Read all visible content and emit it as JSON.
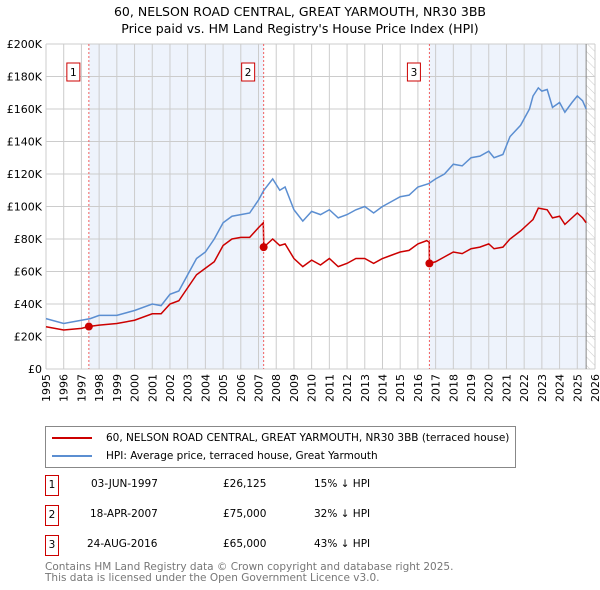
{
  "chart_data": {
    "type": "line",
    "title": "60, NELSON ROAD CENTRAL, GREAT YARMOUTH, NR30 3BB",
    "subtitle": "Price paid vs. HM Land Registry's House Price Index (HPI)",
    "xlim": [
      1995,
      2026
    ],
    "ylim": [
      0,
      200000
    ],
    "x_ticks": [
      "1995",
      "1996",
      "1997",
      "1998",
      "1999",
      "2000",
      "2001",
      "2002",
      "2003",
      "2004",
      "2005",
      "2006",
      "2007",
      "2008",
      "2009",
      "2010",
      "2011",
      "2012",
      "2013",
      "2014",
      "2015",
      "2016",
      "2017",
      "2018",
      "2019",
      "2020",
      "2021",
      "2022",
      "2023",
      "2024",
      "2025",
      "2026"
    ],
    "y_ticks": [
      {
        "v": 0,
        "label": "£0"
      },
      {
        "v": 20000,
        "label": "£20K"
      },
      {
        "v": 40000,
        "label": "£40K"
      },
      {
        "v": 60000,
        "label": "£60K"
      },
      {
        "v": 80000,
        "label": "£80K"
      },
      {
        "v": 100000,
        "label": "£100K"
      },
      {
        "v": 120000,
        "label": "£120K"
      },
      {
        "v": 140000,
        "label": "£140K"
      },
      {
        "v": 160000,
        "label": "£160K"
      },
      {
        "v": 180000,
        "label": "£180K"
      },
      {
        "v": 200000,
        "label": "£200K"
      }
    ],
    "grid": true,
    "colors": {
      "property": "#cc0000",
      "hpi": "#5b8ed1",
      "shade": "#eef3fc",
      "marker": "#cc0000"
    },
    "series": [
      {
        "name": "60, NELSON ROAD CENTRAL, GREAT YARMOUTH, NR30 3BB (terraced house)",
        "x": [
          1995,
          1996,
          1997,
          1997.42,
          1998,
          1999,
          2000,
          2001,
          2001.5,
          2002,
          2002.5,
          2003,
          2003.5,
          2004,
          2004.5,
          2005,
          2005.5,
          2006,
          2006.5,
          2007,
          2007.27,
          2007.3,
          2007.8,
          2008.2,
          2008.5,
          2009,
          2009.5,
          2010,
          2010.5,
          2011,
          2011.5,
          2012,
          2012.5,
          2013,
          2013.5,
          2014,
          2014.5,
          2015,
          2015.5,
          2016,
          2016.5,
          2016.64,
          2016.65,
          2017,
          2017.5,
          2018,
          2018.5,
          2019,
          2019.5,
          2020,
          2020.3,
          2020.8,
          2021.2,
          2021.8,
          2022.3,
          2022.5,
          2022.8,
          2023.3,
          2023.6,
          2024,
          2024.3,
          2024.7,
          2025,
          2025.3,
          2025.5
        ],
        "y": [
          26,
          24,
          25,
          26.125,
          27,
          28,
          30,
          34,
          34,
          40,
          42,
          50,
          58,
          62,
          66,
          76,
          80,
          81,
          81,
          87,
          90,
          75,
          80,
          76,
          77,
          68,
          63,
          67,
          64,
          68,
          63,
          65,
          68,
          68,
          65,
          68,
          70,
          72,
          73,
          77,
          79,
          78,
          65,
          66,
          69,
          72,
          71,
          74,
          75,
          77,
          74,
          75,
          80,
          85,
          90,
          92,
          99,
          98,
          93,
          94,
          89,
          93,
          96,
          93,
          90
        ]
      },
      {
        "name": "HPI: Average price, terraced house, Great Yarmouth",
        "x": [
          1995,
          1996,
          1997,
          1997.5,
          1998,
          1999,
          2000,
          2001,
          2001.5,
          2002,
          2002.5,
          2003,
          2003.5,
          2004,
          2004.5,
          2005,
          2005.5,
          2006,
          2006.5,
          2007,
          2007.3,
          2007.8,
          2008.2,
          2008.5,
          2009,
          2009.5,
          2010,
          2010.5,
          2011,
          2011.5,
          2012,
          2012.5,
          2013,
          2013.5,
          2014,
          2014.5,
          2015,
          2015.5,
          2016,
          2016.6,
          2017,
          2017.5,
          2018,
          2018.5,
          2019,
          2019.5,
          2020,
          2020.3,
          2020.8,
          2021.2,
          2021.8,
          2022.3,
          2022.5,
          2022.8,
          2023,
          2023.3,
          2023.6,
          2024,
          2024.3,
          2024.7,
          2025,
          2025.3,
          2025.5
        ],
        "y": [
          31,
          28,
          30,
          31,
          33,
          33,
          36,
          40,
          39,
          46,
          48,
          58,
          68,
          72,
          80,
          90,
          94,
          95,
          96,
          104,
          110,
          117,
          110,
          112,
          98,
          91,
          97,
          95,
          98,
          93,
          95,
          98,
          100,
          96,
          100,
          103,
          106,
          107,
          112,
          114,
          117,
          120,
          126,
          125,
          130,
          131,
          134,
          130,
          132,
          143,
          150,
          160,
          168,
          173,
          171,
          172,
          161,
          164,
          158,
          164,
          168,
          165,
          160
        ]
      }
    ],
    "y_units": "thousands GBP",
    "sales": [
      {
        "id": "1",
        "x": 1997.42,
        "y": 26.125,
        "date": "03-JUN-1997",
        "price": "£26,125",
        "hpi": "15% ↓ HPI"
      },
      {
        "id": "2",
        "x": 2007.29,
        "y": 75,
        "date": "18-APR-2007",
        "price": "£75,000",
        "hpi": "32% ↓ HPI"
      },
      {
        "id": "3",
        "x": 2016.65,
        "y": 65,
        "date": "24-AUG-2016",
        "price": "£65,000",
        "hpi": "43% ↓ HPI"
      }
    ],
    "shaded_ranges": [
      [
        1997.42,
        2007.29
      ],
      [
        2016.65,
        2025.5
      ]
    ],
    "forecast_from": 2025.5,
    "legend_position": "below"
  },
  "footer": {
    "line1": "Contains HM Land Registry data © Crown copyright and database right 2025.",
    "line2": "This data is licensed under the Open Government Licence v3.0."
  }
}
